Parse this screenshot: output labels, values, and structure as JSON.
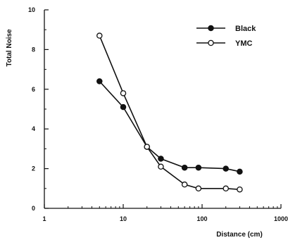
{
  "chart_data": {
    "type": "line",
    "title": "",
    "xlabel": "Distance  (cm)",
    "ylabel": "Total  Noise",
    "xscale": "log",
    "xlim": [
      1,
      1000
    ],
    "ylim": [
      0,
      10
    ],
    "xticks": [
      1,
      10,
      100,
      1000
    ],
    "xtick_labels": [
      "1",
      "10",
      "100",
      "1000"
    ],
    "yticks": [
      0,
      2,
      4,
      6,
      8,
      10
    ],
    "ytick_labels": [
      "0",
      "2",
      "4",
      "6",
      "8",
      "10"
    ],
    "grid": false,
    "legend_position": "top-right",
    "series": [
      {
        "name": "Black",
        "marker": "filled-circle",
        "color": "#111111",
        "x": [
          5,
          10,
          20,
          30,
          60,
          90,
          200,
          300
        ],
        "y": [
          6.4,
          5.1,
          3.1,
          2.5,
          2.05,
          2.05,
          2.0,
          1.85
        ]
      },
      {
        "name": "YMC",
        "marker": "open-circle",
        "color": "#111111",
        "x": [
          5,
          10,
          20,
          30,
          60,
          90,
          200,
          300
        ],
        "y": [
          8.7,
          5.8,
          3.1,
          2.1,
          1.2,
          1.0,
          1.0,
          0.95
        ]
      }
    ]
  }
}
